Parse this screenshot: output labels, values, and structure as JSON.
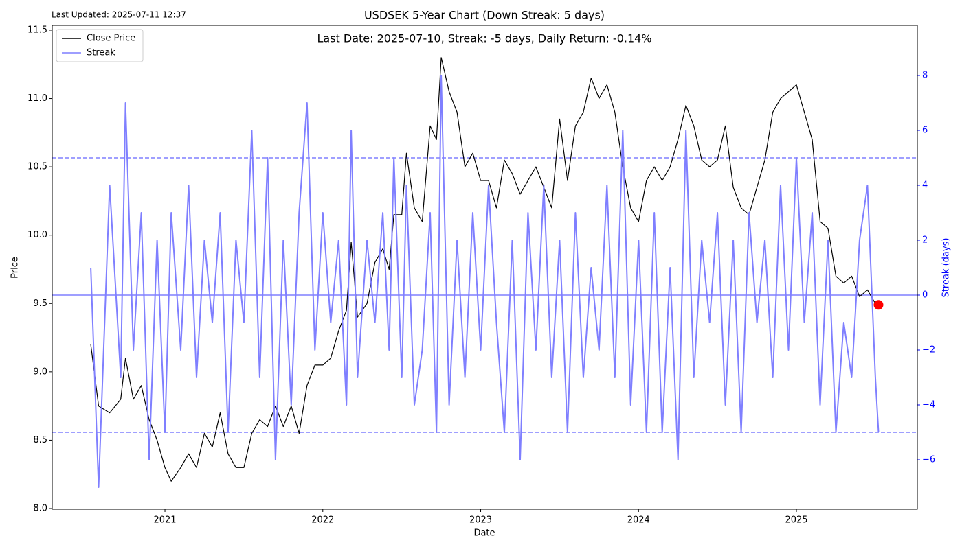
{
  "chart_data": {
    "type": "line",
    "title": "USDSEK 5-Year Chart (Down Streak: 5 days)",
    "subtitle": "Last Date: 2025-07-10, Streak: -5 days, Daily Return: -0.14%",
    "note": "Last Updated: 2025-07-11 12:37",
    "x_label": "Date",
    "y_label": "Price",
    "y2_label": "Streak (days)",
    "x": [
      2020.53,
      2020.58,
      2020.65,
      2020.72,
      2020.75,
      2020.8,
      2020.85,
      2020.9,
      2020.95,
      2021.0,
      2021.04,
      2021.1,
      2021.15,
      2021.2,
      2021.25,
      2021.3,
      2021.35,
      2021.4,
      2021.45,
      2021.5,
      2021.55,
      2021.6,
      2021.65,
      2021.7,
      2021.75,
      2021.8,
      2021.85,
      2021.9,
      2021.95,
      2022.0,
      2022.05,
      2022.1,
      2022.15,
      2022.18,
      2022.22,
      2022.28,
      2022.33,
      2022.38,
      2022.42,
      2022.45,
      2022.5,
      2022.53,
      2022.58,
      2022.63,
      2022.68,
      2022.72,
      2022.75,
      2022.8,
      2022.85,
      2022.9,
      2022.95,
      2023.0,
      2023.05,
      2023.1,
      2023.15,
      2023.2,
      2023.25,
      2023.3,
      2023.35,
      2023.4,
      2023.45,
      2023.5,
      2023.55,
      2023.6,
      2023.65,
      2023.7,
      2023.75,
      2023.8,
      2023.85,
      2023.9,
      2023.95,
      2024.0,
      2024.05,
      2024.1,
      2024.15,
      2024.2,
      2024.25,
      2024.3,
      2024.35,
      2024.4,
      2024.45,
      2024.5,
      2024.55,
      2024.6,
      2024.65,
      2024.7,
      2024.75,
      2024.8,
      2024.85,
      2024.9,
      2024.95,
      2025.0,
      2025.05,
      2025.1,
      2025.15,
      2025.2,
      2025.25,
      2025.3,
      2025.35,
      2025.4,
      2025.45,
      2025.5,
      2025.52
    ],
    "series": [
      {
        "name": "Close Price",
        "color": "#000000",
        "axis": "y",
        "values": [
          9.2,
          8.75,
          8.7,
          8.8,
          9.1,
          8.8,
          8.9,
          8.65,
          8.5,
          8.3,
          8.2,
          8.3,
          8.4,
          8.3,
          8.55,
          8.45,
          8.7,
          8.4,
          8.3,
          8.3,
          8.55,
          8.65,
          8.6,
          8.75,
          8.6,
          8.75,
          8.55,
          8.9,
          9.05,
          9.05,
          9.1,
          9.3,
          9.45,
          9.95,
          9.4,
          9.5,
          9.8,
          9.9,
          9.75,
          10.15,
          10.15,
          10.6,
          10.2,
          10.1,
          10.8,
          10.7,
          11.3,
          11.05,
          10.9,
          10.5,
          10.6,
          10.4,
          10.4,
          10.2,
          10.55,
          10.45,
          10.3,
          10.4,
          10.5,
          10.35,
          10.2,
          10.85,
          10.4,
          10.8,
          10.9,
          11.15,
          11.0,
          11.1,
          10.9,
          10.5,
          10.2,
          10.1,
          10.4,
          10.5,
          10.4,
          10.5,
          10.7,
          10.95,
          10.8,
          10.55,
          10.5,
          10.55,
          10.8,
          10.35,
          10.2,
          10.15,
          10.35,
          10.55,
          10.9,
          11.0,
          11.05,
          11.1,
          10.9,
          10.7,
          10.1,
          10.05,
          9.7,
          9.65,
          9.7,
          9.55,
          9.6,
          9.5,
          9.49
        ]
      },
      {
        "name": "Streak",
        "color": "#7f7fff",
        "axis": "y2",
        "values": [
          1,
          -7,
          4,
          -3,
          7,
          -2,
          3,
          -6,
          2,
          -5,
          3,
          -2,
          4,
          -3,
          2,
          -1,
          3,
          -5,
          2,
          -1,
          6,
          -3,
          5,
          -6,
          2,
          -4,
          3,
          7,
          -2,
          3,
          -1,
          2,
          -4,
          6,
          -3,
          2,
          -1,
          3,
          -2,
          5,
          -3,
          4,
          -4,
          -2,
          3,
          -5,
          8,
          -4,
          2,
          -3,
          3,
          -2,
          4,
          -1,
          -5,
          2,
          -6,
          3,
          -2,
          4,
          -3,
          2,
          -5,
          3,
          -3,
          1,
          -2,
          4,
          -3,
          6,
          -4,
          2,
          -5,
          3,
          -5,
          1,
          -6,
          6,
          -3,
          2,
          -1,
          3,
          -4,
          2,
          -5,
          3,
          -1,
          2,
          -3,
          4,
          -2,
          5,
          -1,
          3,
          -4,
          2,
          -5,
          -1,
          -3,
          2,
          4,
          -3,
          -5
        ]
      }
    ],
    "last_point_color": "#ff0000",
    "y2_reference_lines": [
      {
        "value": 5,
        "style": "dashed"
      },
      {
        "value": 0,
        "style": "solid"
      },
      {
        "value": -5,
        "style": "dashed"
      }
    ],
    "xlim": [
      2020.286,
      2025.766
    ],
    "xticks": [
      2021,
      2022,
      2023,
      2024,
      2025
    ],
    "ylim": [
      7.995,
      11.535
    ],
    "yticks": [
      {
        "value": 8,
        "label": "8.0"
      },
      8.5,
      {
        "value": 9,
        "label": "9.0"
      },
      9.5,
      {
        "value": 10,
        "label": "10.0"
      },
      10.5,
      {
        "value": 11,
        "label": "11.0"
      },
      11.5
    ],
    "y2lim": [
      -7.8,
      9.825
    ],
    "y2ticks": [
      {
        "value": -6,
        "label": "−6"
      },
      {
        "value": -4,
        "label": "−4"
      },
      {
        "value": -2,
        "label": "−2"
      },
      0,
      2,
      4,
      6,
      8
    ],
    "legend": "upper left"
  }
}
